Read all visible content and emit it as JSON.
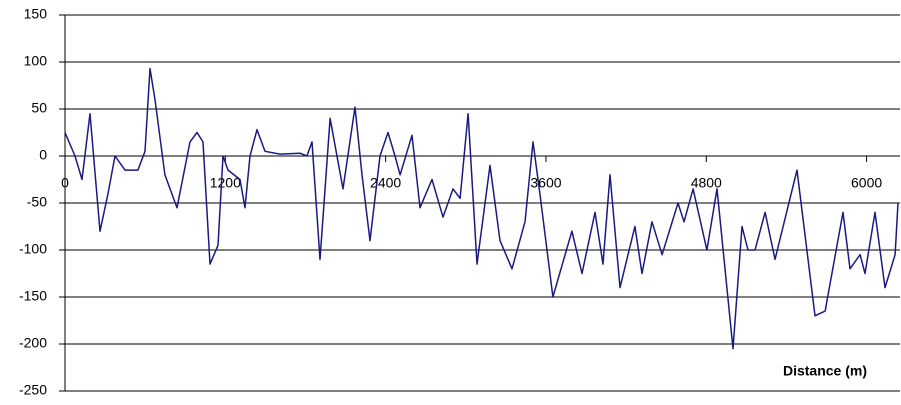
{
  "chart_data": {
    "type": "line",
    "x_label": "Distance (m)",
    "x": [
      0,
      75,
      127,
      187,
      262,
      322,
      374,
      449,
      546,
      599,
      636,
      674,
      748,
      838,
      936,
      988,
      1033,
      1085,
      1145,
      1183,
      1220,
      1310,
      1347,
      1385,
      1437,
      1497,
      1609,
      1759,
      1811,
      1849,
      1909,
      1984,
      2081,
      2171,
      2223,
      2283,
      2358,
      2418,
      2470,
      2508,
      2597,
      2657,
      2747,
      2829,
      2904,
      2957,
      3017,
      3084,
      3181,
      3256,
      3346,
      3443,
      3503,
      3555,
      3652,
      3794,
      3870,
      3967,
      4027,
      4079,
      4154,
      4266,
      4319,
      4394,
      4469,
      4588,
      4633,
      4701,
      4805,
      4880,
      5000,
      5067,
      5112,
      5165,
      5240,
      5314,
      5479,
      5614,
      5689,
      5823,
      5876,
      5951,
      5988,
      6063,
      6138,
      6213,
      6235
    ],
    "series": [
      {
        "color": "#1a1a80",
        "values": [
          25,
          0,
          -25,
          45,
          -80,
          -40,
          0,
          -15,
          -15,
          5,
          93,
          60,
          -20,
          -55,
          15,
          25,
          15,
          -115,
          -95,
          0,
          -15,
          -25,
          -55,
          0,
          28,
          5,
          2,
          3,
          0,
          15,
          -110,
          40,
          -35,
          52,
          -20,
          -90,
          0,
          25,
          0,
          -20,
          22,
          -55,
          -25,
          -65,
          -35,
          -45,
          45,
          -115,
          -10,
          -90,
          -120,
          -70,
          15,
          -40,
          -150,
          -80,
          -125,
          -60,
          -115,
          -20,
          -140,
          -75,
          -125,
          -70,
          -105,
          -50,
          -70,
          -35,
          -100,
          -35,
          -205,
          -75,
          -100,
          -100,
          -60,
          -110,
          -15,
          -170,
          -165,
          -60,
          -120,
          -105,
          -125,
          -60,
          -140,
          -105,
          -50
        ]
      }
    ],
    "xlim": [
      0,
      6250
    ],
    "xticks": [
      0,
      1200,
      2400,
      3600,
      4800,
      6000
    ],
    "ylim": [
      -250,
      150
    ],
    "yticks": [
      -250,
      -200,
      -150,
      -100,
      -50,
      0,
      50,
      100,
      150
    ],
    "grid": true
  }
}
